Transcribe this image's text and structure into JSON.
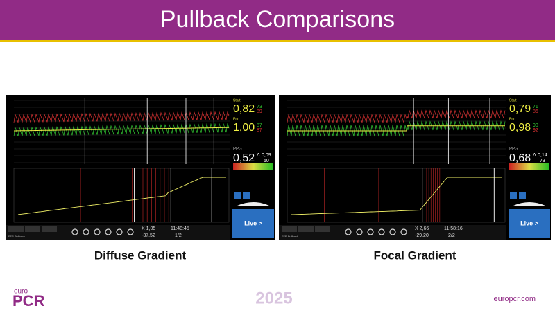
{
  "header": {
    "title": "Pullback Comparisons"
  },
  "panels": [
    {
      "caption": "Diffuse Gradient",
      "start_label": "Start",
      "start_value": "0,82",
      "start_pa": "73",
      "start_pd": "89",
      "end_label": "End",
      "end_value": "1,00",
      "end_pa": "87",
      "end_pd": "87",
      "ppg_label": "PPG",
      "ppg_value": "0,52",
      "delta": "0,09",
      "delta_pct": "50",
      "live": "Live >",
      "x_readout": "X 1,05",
      "y_readout": "-37,52",
      "time": "11:48:45",
      "page": "1/2",
      "mode": "FFR Pullback"
    },
    {
      "caption": "Focal Gradient",
      "start_label": "Start",
      "start_value": "0,79",
      "start_pa": "71",
      "start_pd": "86",
      "end_label": "End",
      "end_value": "0,98",
      "end_pa": "90",
      "end_pd": "92",
      "ppg_label": "PPG",
      "ppg_value": "0,68",
      "delta": "0,14",
      "delta_pct": "73",
      "live": "Live >",
      "x_readout": "X 2,66",
      "y_readout": "-29,20",
      "time": "11:58:16",
      "page": "2/2",
      "mode": "FFR Pullback"
    }
  ],
  "footer": {
    "year": "2025",
    "logo_top": "euro",
    "logo_main": "PCR",
    "url": "europcr.com"
  }
}
